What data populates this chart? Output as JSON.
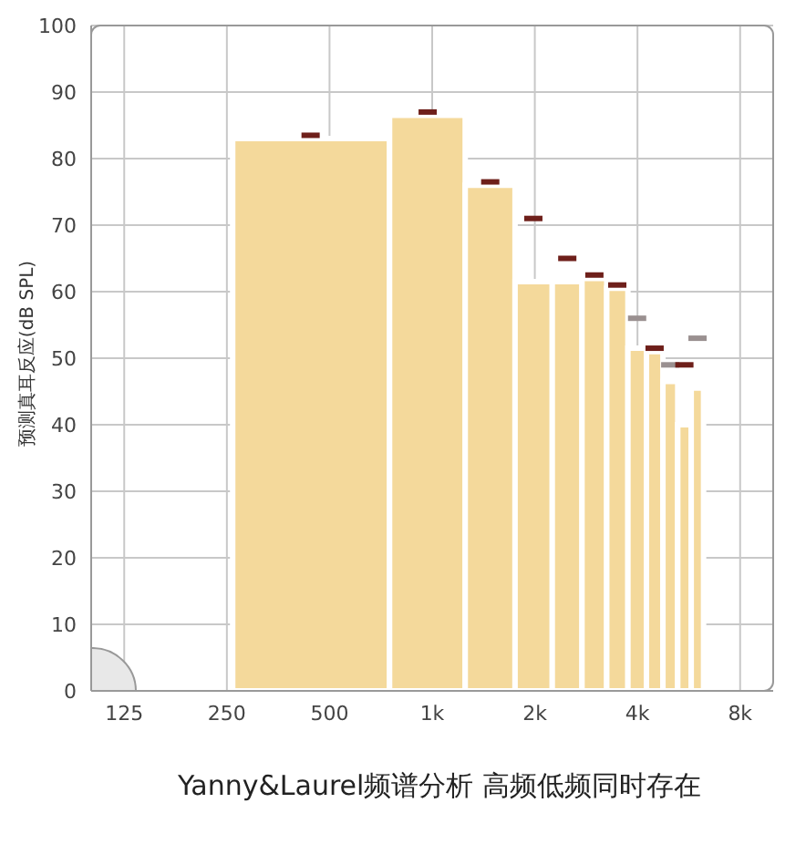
{
  "chart_data": {
    "type": "histogram",
    "title": "Yanny&Laurel频谱分析  高频低频同时存在",
    "ylabel": "预测真耳反应(dB SPL)",
    "log": "x",
    "grid": true,
    "xlim": [
      100,
      10000
    ],
    "ylim": [
      0,
      100
    ],
    "xticks": [
      125,
      250,
      500,
      {
        "value": 1000,
        "label": "1k"
      },
      {
        "value": 2000,
        "label": "2k"
      },
      {
        "value": 4000,
        "label": "4k"
      },
      {
        "value": 8000,
        "label": "8k"
      }
    ],
    "yticks": [
      0,
      10,
      20,
      30,
      40,
      50,
      60,
      70,
      80,
      90,
      100
    ],
    "series": [
      {
        "color": "#f4d99b",
        "bins": [
          260,
          750,
          1250,
          1750,
          2250,
          2750,
          3250,
          3750,
          4250,
          4750,
          5250,
          5750,
          6250
        ],
        "values": [
          83,
          86.5,
          76,
          61.5,
          61.5,
          62,
          60.5,
          51.5,
          51,
          46.5,
          40,
          45.5
        ]
      },
      {
        "type": "scatter",
        "x": [
          440,
          970,
          1480,
          1980,
          2490,
          2990,
          3490,
          3990,
          4490,
          4990,
          5490,
          6000
        ],
        "values": [
          83.5,
          87,
          76.5,
          71,
          65,
          62.5,
          61,
          56,
          51.5,
          49,
          49,
          53
        ],
        "colors": [
          "#6e1f1a",
          "#6e1f1a",
          "#6e1f1a",
          "#6e1f1a",
          "#6e1f1a",
          "#6e1f1a",
          "#6e1f1a",
          "#9a9090",
          "#6e1f1a",
          "#9a9090",
          "#6e1f1a",
          "#9a9090"
        ]
      }
    ]
  }
}
